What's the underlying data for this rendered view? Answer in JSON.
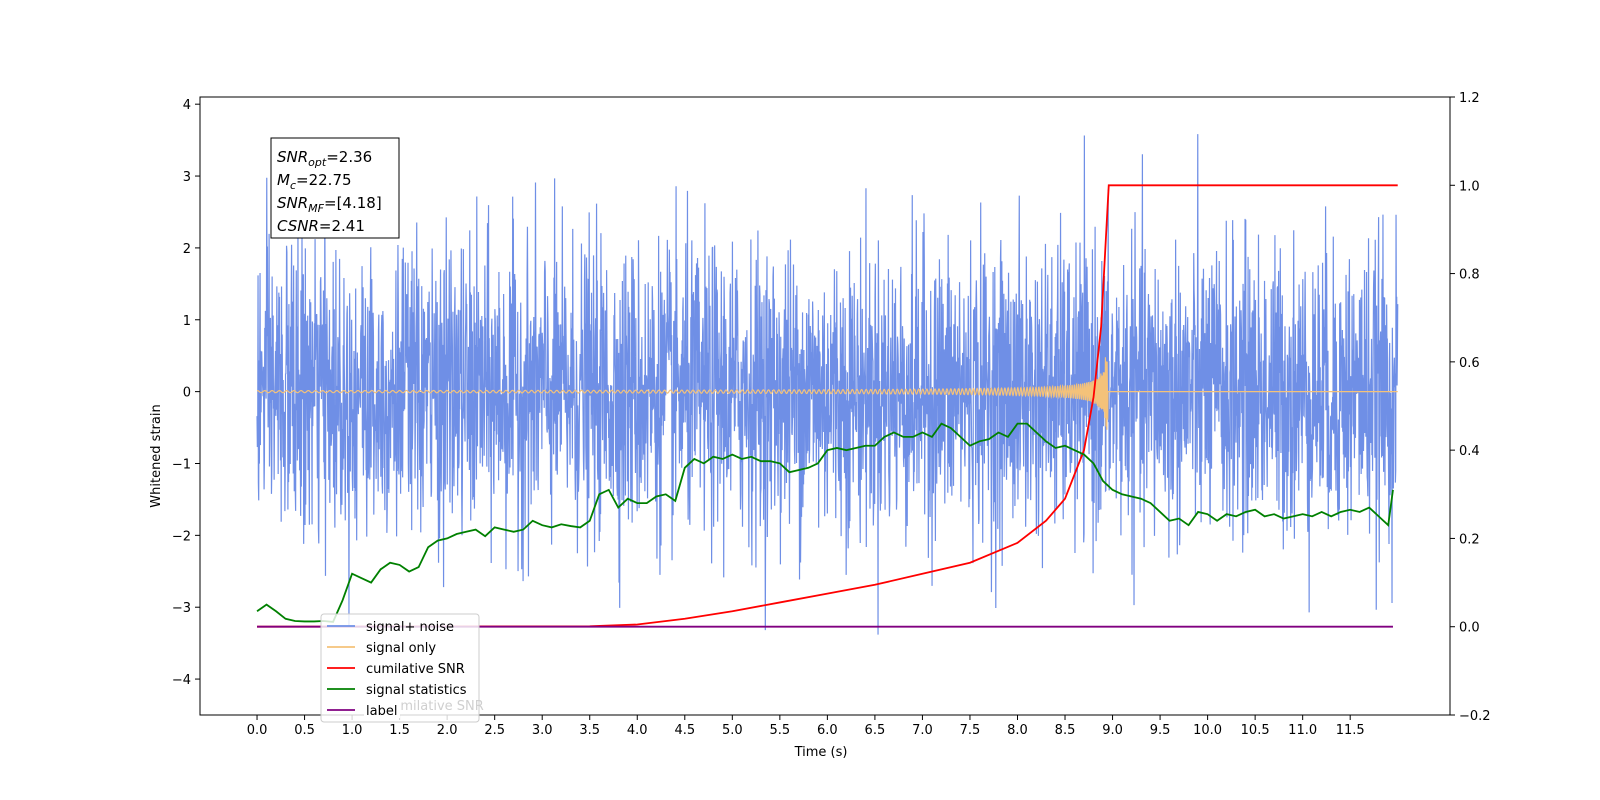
{
  "chart_data": {
    "type": "line",
    "title": "",
    "xlabel": "Time (s)",
    "ylabel": "Whitened strain",
    "y2label": "",
    "xlim": [
      -0.6,
      12.55
    ],
    "ylim": [
      -4.5,
      4.1
    ],
    "y2lim": [
      -0.2,
      1.2
    ],
    "x_ticks": [
      "0.0",
      "0.5",
      "1.0",
      "1.5",
      "2.0",
      "2.5",
      "3.0",
      "3.5",
      "4.0",
      "4.5",
      "5.0",
      "5.5",
      "6.0",
      "6.5",
      "7.0",
      "7.5",
      "8.0",
      "8.5",
      "9.0",
      "9.5",
      "10.0",
      "10.5",
      "11.0",
      "11.5"
    ],
    "y_ticks": [
      "4",
      "3",
      "2",
      "1",
      "0",
      "−1",
      "−2",
      "−3",
      "−4"
    ],
    "y2_ticks": [
      "1.2",
      "1.0",
      "0.8",
      "0.6",
      "0.4",
      "0.2",
      "0.0",
      "−0.2"
    ],
    "legend_position": "lower-left",
    "grid": false,
    "series": [
      {
        "name": "signal+ noise",
        "axis": "left",
        "color": "#6f8fe6",
        "description": "whitened noisy strain, approx. std 1, range about -4.1 to 3.7, from t=0 to t=12"
      },
      {
        "name": "signal only",
        "axis": "left",
        "color": "#f4c27a",
        "description": "chirp waveform, amplitude growing from 0 to about 0.55 at merger t=8.95, zero afterwards"
      },
      {
        "name": "cumilative SNR",
        "axis": "right",
        "x": [
          0,
          3.5,
          4.0,
          4.5,
          5.0,
          5.5,
          6.0,
          6.5,
          7.0,
          7.5,
          8.0,
          8.3,
          8.5,
          8.7,
          8.8,
          8.88,
          8.93,
          8.96,
          9.0,
          12.0
        ],
        "values": [
          0,
          0.001,
          0.005,
          0.018,
          0.035,
          0.055,
          0.075,
          0.095,
          0.12,
          0.145,
          0.19,
          0.24,
          0.29,
          0.4,
          0.52,
          0.68,
          0.88,
          1.0,
          1.0,
          1.0
        ],
        "color": "#ff0000"
      },
      {
        "name": "signal statistics",
        "axis": "right",
        "x": [
          0,
          0.1,
          0.2,
          0.3,
          0.4,
          0.5,
          0.6,
          0.7,
          0.8,
          0.9,
          1.0,
          1.1,
          1.2,
          1.3,
          1.4,
          1.5,
          1.6,
          1.7,
          1.8,
          1.9,
          2.0,
          2.1,
          2.2,
          2.3,
          2.4,
          2.5,
          2.6,
          2.7,
          2.8,
          2.9,
          3.0,
          3.1,
          3.2,
          3.3,
          3.4,
          3.5,
          3.6,
          3.7,
          3.8,
          3.9,
          4.0,
          4.1,
          4.2,
          4.3,
          4.4,
          4.5,
          4.6,
          4.7,
          4.8,
          4.9,
          5.0,
          5.1,
          5.2,
          5.3,
          5.4,
          5.5,
          5.6,
          5.7,
          5.8,
          5.9,
          6.0,
          6.1,
          6.2,
          6.3,
          6.4,
          6.5,
          6.6,
          6.7,
          6.8,
          6.9,
          7.0,
          7.1,
          7.2,
          7.3,
          7.4,
          7.5,
          7.6,
          7.7,
          7.8,
          7.9,
          8.0,
          8.1,
          8.2,
          8.3,
          8.4,
          8.5,
          8.6,
          8.7,
          8.8,
          8.9,
          9.0,
          9.1,
          9.2,
          9.3,
          9.4,
          9.5,
          9.6,
          9.7,
          9.8,
          9.9,
          10.0,
          10.1,
          10.2,
          10.3,
          10.4,
          10.5,
          10.6,
          10.7,
          10.8,
          10.9,
          11.0,
          11.1,
          11.2,
          11.3,
          11.4,
          11.5,
          11.6,
          11.7,
          11.8,
          11.9,
          11.95
        ],
        "values": [
          0.035,
          0.05,
          0.035,
          0.018,
          0.013,
          0.012,
          0.012,
          0.013,
          0.011,
          0.06,
          0.12,
          0.11,
          0.1,
          0.13,
          0.145,
          0.14,
          0.125,
          0.135,
          0.18,
          0.195,
          0.2,
          0.21,
          0.215,
          0.22,
          0.205,
          0.225,
          0.22,
          0.215,
          0.22,
          0.24,
          0.23,
          0.225,
          0.232,
          0.228,
          0.225,
          0.24,
          0.3,
          0.31,
          0.27,
          0.29,
          0.28,
          0.28,
          0.295,
          0.3,
          0.285,
          0.36,
          0.38,
          0.37,
          0.385,
          0.38,
          0.39,
          0.38,
          0.385,
          0.375,
          0.375,
          0.37,
          0.35,
          0.355,
          0.36,
          0.37,
          0.4,
          0.405,
          0.4,
          0.405,
          0.41,
          0.41,
          0.43,
          0.44,
          0.43,
          0.43,
          0.44,
          0.43,
          0.46,
          0.45,
          0.43,
          0.41,
          0.42,
          0.425,
          0.44,
          0.43,
          0.46,
          0.46,
          0.44,
          0.42,
          0.405,
          0.41,
          0.4,
          0.39,
          0.37,
          0.33,
          0.31,
          0.3,
          0.295,
          0.29,
          0.28,
          0.26,
          0.24,
          0.245,
          0.23,
          0.26,
          0.255,
          0.24,
          0.255,
          0.25,
          0.26,
          0.265,
          0.25,
          0.255,
          0.245,
          0.25,
          0.255,
          0.25,
          0.26,
          0.25,
          0.26,
          0.265,
          0.26,
          0.27,
          0.25,
          0.23,
          0.31
        ],
        "color": "#008000"
      },
      {
        "name": "label",
        "axis": "right",
        "x": [
          0,
          11.95
        ],
        "values": [
          0,
          0
        ],
        "color": "#800080"
      }
    ],
    "hidden_legend_fragment": "cumilative SNR",
    "annotation": {
      "lines": [
        {
          "base": "SNR",
          "sub": "opt",
          "rest": "=2.36"
        },
        {
          "base": "M",
          "sub": "c",
          "rest": "=22.75"
        },
        {
          "base": "SNR",
          "sub": "MF",
          "rest": "=[4.18]"
        },
        {
          "base": "CSNR",
          "sub": "",
          "rest": "=2.41"
        }
      ]
    }
  }
}
